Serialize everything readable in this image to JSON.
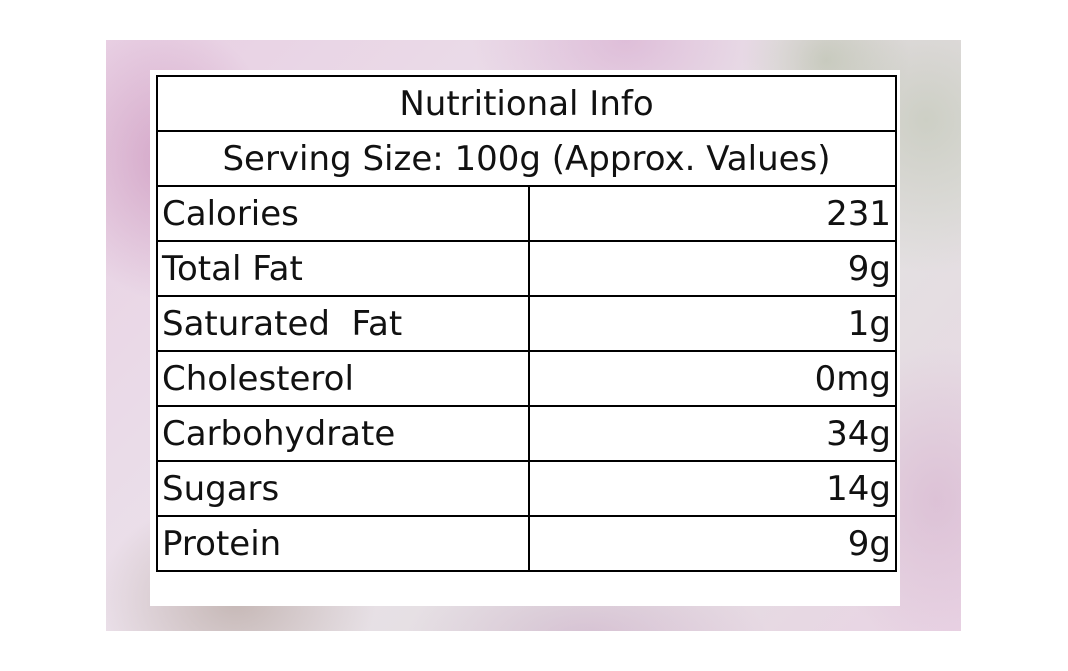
{
  "table": {
    "title": "Nutritional Info",
    "subtitle": "Serving Size: 100g (Approx. Values)",
    "rows": [
      {
        "label": "Calories",
        "value": "231"
      },
      {
        "label": "Total Fat",
        "value": "9g"
      },
      {
        "label": "Saturated  Fat",
        "value": "1g"
      },
      {
        "label": "Cholesterol",
        "value": "0mg"
      },
      {
        "label": "Carbohydrate",
        "value": "34g"
      },
      {
        "label": "Sugars",
        "value": "14g"
      },
      {
        "label": "Protein",
        "value": "9g"
      }
    ]
  },
  "colors": {
    "background_tint": "#e8cfe3",
    "border": "#000000",
    "text": "#111111"
  }
}
